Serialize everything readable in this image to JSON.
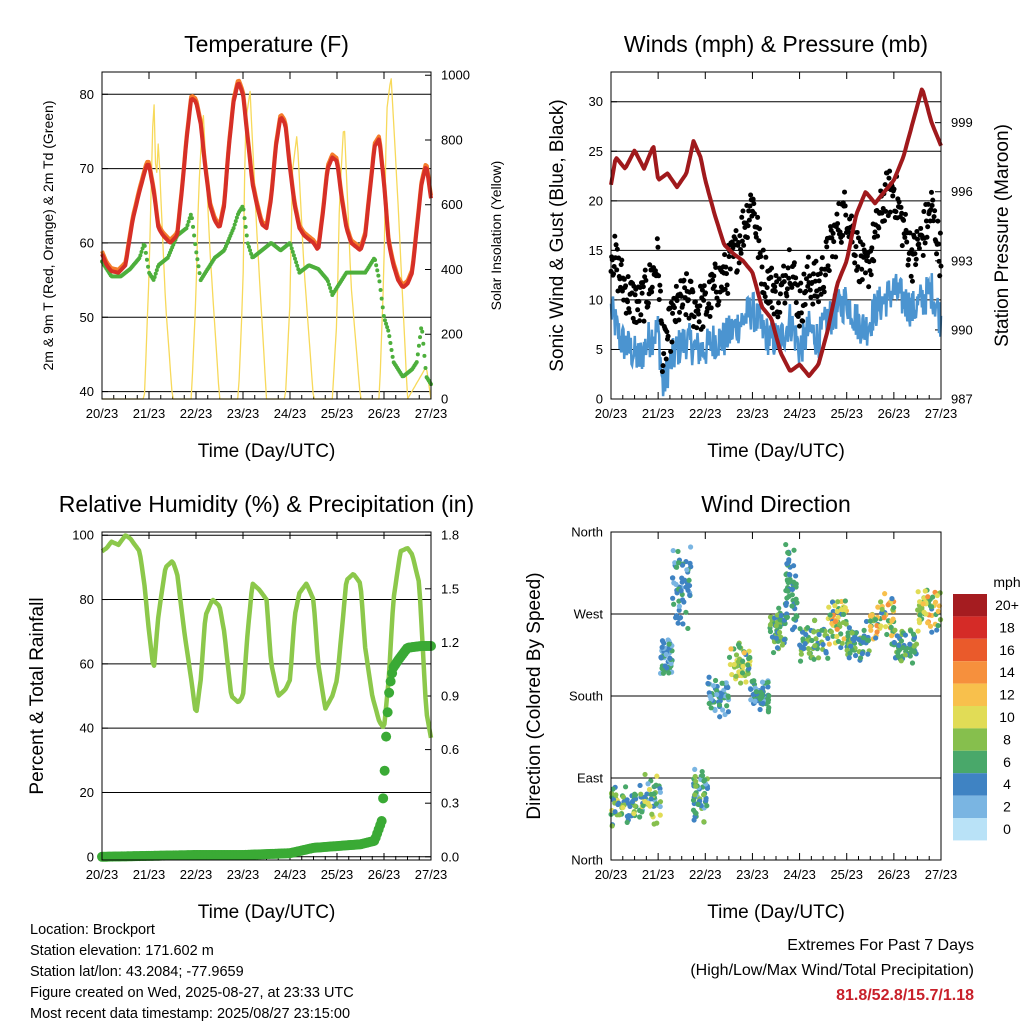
{
  "footer": {
    "location": "Location: Brockport",
    "elevation": "Station elevation: 171.602 m",
    "latlon": "Station lat/lon: 43.2084; -77.9659",
    "created": "Figure created on Wed, 2025-08-27, at 23:33 UTC",
    "recent": "Most recent data timestamp: 2025/08/27 23:15:00",
    "extremes_title": "Extremes For Past 7 Days",
    "extremes_sub": "(High/Low/Max Wind/Total Precipitation)",
    "extremes_values": "81.8/52.8/15.7/1.18"
  },
  "chart_data": [
    {
      "type": "line",
      "title": "Temperature (F)",
      "xlabel": "Time (Day/UTC)",
      "ylabel": "2m & 9m T (Red, Orange) & 2m Td (Green)",
      "ylabel_right": "Solar Insolation (Yellow)",
      "x_ticks": [
        "20/23",
        "21/23",
        "22/23",
        "23/23",
        "24/23",
        "25/23",
        "26/23",
        "27/23"
      ],
      "ylim": [
        39,
        83
      ],
      "y_ticks": [
        40,
        50,
        60,
        70,
        80
      ],
      "ylim_right": [
        0,
        1010
      ],
      "y_ticks_right": [
        0,
        200,
        400,
        600,
        800,
        1000
      ],
      "colors": {
        "temp_2m": "#d62f27",
        "temp_9m": "#f57c2b",
        "dewpoint": "#4daf3c",
        "solar": "#f7d95a"
      },
      "series": [
        {
          "key": "temp_2m",
          "axis": "left",
          "x": [
            0,
            0.1,
            0.2,
            0.35,
            0.5,
            0.65,
            0.8,
            0.95,
            1.0,
            1.1,
            1.2,
            1.3,
            1.45,
            1.6,
            1.7,
            1.8,
            1.9,
            2.0,
            2.1,
            2.2,
            2.3,
            2.4,
            2.5,
            2.6,
            2.7,
            2.8,
            2.9,
            3.0,
            3.1,
            3.2,
            3.3,
            3.4,
            3.5,
            3.6,
            3.7,
            3.8,
            3.9,
            4.0,
            4.1,
            4.2,
            4.3,
            4.4,
            4.5,
            4.6,
            4.7,
            4.8,
            4.9,
            5.0,
            5.1,
            5.2,
            5.3,
            5.4,
            5.5,
            5.6,
            5.7,
            5.8,
            5.9,
            6.0,
            6.1,
            6.2,
            6.3,
            6.4,
            6.5,
            6.6,
            6.7,
            6.8,
            6.9,
            7.0
          ],
          "values": [
            58.5,
            57,
            56.2,
            56,
            57,
            63,
            67,
            70.5,
            70.5,
            67,
            62,
            61,
            60,
            61,
            67,
            74,
            79.5,
            79,
            76,
            70,
            65,
            63,
            62,
            65,
            73,
            79,
            81.7,
            80,
            74,
            68,
            65,
            62.5,
            62,
            66,
            73,
            77,
            76,
            70,
            65,
            62,
            61,
            60.5,
            60,
            59,
            64,
            70,
            71.5,
            71,
            66,
            62,
            60,
            59.5,
            59,
            61,
            67,
            73,
            74,
            68,
            60,
            57,
            55,
            54,
            54.5,
            56,
            62,
            68,
            70.5,
            66
          ]
        },
        {
          "key": "dewpoint",
          "axis": "left",
          "x": [
            0,
            0.2,
            0.4,
            0.6,
            0.8,
            0.9,
            1.0,
            1.1,
            1.2,
            1.4,
            1.6,
            1.8,
            1.9,
            2.0,
            2.1,
            2.2,
            2.4,
            2.6,
            2.8,
            2.9,
            3.0,
            3.1,
            3.2,
            3.4,
            3.6,
            3.8,
            4.0,
            4.2,
            4.4,
            4.6,
            4.8,
            4.9,
            5.0,
            5.2,
            5.4,
            5.6,
            5.8,
            5.9,
            6.0,
            6.1,
            6.2,
            6.4,
            6.6,
            6.7,
            6.8,
            6.9,
            7.0
          ],
          "values": [
            57.5,
            55.5,
            55.5,
            56.5,
            58,
            60,
            56,
            55,
            57,
            58,
            61,
            62,
            64,
            59,
            55,
            56,
            58,
            59,
            62,
            64,
            65,
            60,
            58,
            59,
            60,
            59,
            60,
            56,
            57,
            56.5,
            55,
            53,
            54,
            56,
            56,
            56,
            58,
            55,
            50,
            48,
            44,
            42,
            43,
            44,
            49,
            42,
            41
          ]
        },
        {
          "key": "solar",
          "axis": "right",
          "x": [
            0,
            0.9,
            1.0,
            1.1,
            1.15,
            1.2,
            1.35,
            1.5,
            1.9,
            2.0,
            2.05,
            2.15,
            2.3,
            2.5,
            2.9,
            3.0,
            3.05,
            3.15,
            3.3,
            3.5,
            3.9,
            4.0,
            4.05,
            4.15,
            4.3,
            4.5,
            4.9,
            5.0,
            5.05,
            5.15,
            5.3,
            5.5,
            5.9,
            6.0,
            6.05,
            6.15,
            6.3,
            6.5,
            6.9,
            7.0
          ],
          "values": [
            0,
            0,
            380,
            960,
            650,
            800,
            300,
            0,
            0,
            320,
            620,
            900,
            450,
            0,
            0,
            350,
            850,
            950,
            500,
            0,
            0,
            300,
            700,
            820,
            400,
            0,
            0,
            250,
            600,
            870,
            350,
            0,
            0,
            400,
            880,
            1000,
            600,
            0,
            100,
            0
          ]
        }
      ]
    },
    {
      "type": "line",
      "title": "Winds (mph) & Pressure (mb)",
      "xlabel": "Time (Day/UTC)",
      "ylabel": "Sonic Wind & Gust (Blue, Black)",
      "ylabel_right": "Station Pressure (Maroon)",
      "x_ticks": [
        "20/23",
        "21/23",
        "22/23",
        "23/23",
        "24/23",
        "25/23",
        "26/23",
        "27/23"
      ],
      "ylim": [
        0,
        33
      ],
      "y_ticks": [
        0,
        5,
        10,
        15,
        20,
        25,
        30
      ],
      "ylim_right": [
        987,
        1001.2
      ],
      "y_ticks_right": [
        987,
        990,
        993,
        996,
        999
      ],
      "colors": {
        "wind": "#4b94d0",
        "gust": "#000000",
        "pressure": "#a0191c"
      },
      "series": [
        {
          "key": "wind",
          "axis": "left",
          "x": [
            0,
            0.2,
            0.4,
            0.6,
            0.8,
            1.0,
            1.1,
            1.2,
            1.4,
            1.6,
            1.8,
            2.0,
            2.2,
            2.4,
            2.6,
            2.8,
            3.0,
            3.2,
            3.4,
            3.6,
            3.8,
            4.0,
            4.2,
            4.4,
            4.6,
            4.8,
            5.0,
            5.2,
            5.4,
            5.6,
            5.8,
            6.0,
            6.2,
            6.4,
            6.6,
            6.8,
            7.0
          ],
          "values": [
            9,
            6,
            5,
            4,
            6,
            7,
            1,
            3,
            5,
            6,
            5,
            5,
            6,
            6,
            7,
            8,
            9,
            7,
            6,
            6,
            8,
            5,
            7,
            6,
            8,
            9,
            10,
            8,
            7,
            9,
            10,
            11,
            10,
            9,
            10,
            11,
            8
          ]
        },
        {
          "key": "gust",
          "axis": "left",
          "x": [
            0,
            0.2,
            0.4,
            0.6,
            0.8,
            1.0,
            1.1,
            1.2,
            1.4,
            1.6,
            1.8,
            2.0,
            2.2,
            2.4,
            2.6,
            2.8,
            3.0,
            3.2,
            3.4,
            3.6,
            3.8,
            4.0,
            4.2,
            4.4,
            4.6,
            4.8,
            5.0,
            5.2,
            5.4,
            5.6,
            5.8,
            6.0,
            6.2,
            6.4,
            6.6,
            6.8,
            7.0
          ],
          "values": [
            15,
            12,
            10,
            9,
            11,
            14,
            4,
            6,
            9,
            10,
            9,
            9,
            11,
            12,
            14,
            17,
            20,
            13,
            11,
            10,
            14,
            9,
            12,
            11,
            14,
            17,
            19,
            15,
            12,
            16,
            20,
            21,
            17,
            14,
            16,
            19,
            14
          ]
        },
        {
          "key": "pressure",
          "axis": "right",
          "x": [
            0,
            0.1,
            0.3,
            0.5,
            0.7,
            0.9,
            1.0,
            1.2,
            1.4,
            1.6,
            1.75,
            1.9,
            2.0,
            2.2,
            2.4,
            2.6,
            2.8,
            3.0,
            3.2,
            3.4,
            3.6,
            3.8,
            4.0,
            4.2,
            4.4,
            4.6,
            4.8,
            5.0,
            5.2,
            5.4,
            5.6,
            5.8,
            6.0,
            6.2,
            6.4,
            6.6,
            6.8,
            7.0
          ],
          "values": [
            996.3,
            997.5,
            997,
            997.8,
            997,
            998,
            996.5,
            996.8,
            996.2,
            996.8,
            998.2,
            997.5,
            996.5,
            995,
            993.7,
            993.3,
            993,
            992.5,
            991,
            990.5,
            989,
            988.2,
            988.5,
            988,
            988.5,
            990,
            992,
            993,
            995,
            996,
            995.5,
            996,
            996.5,
            997.5,
            999,
            1000.5,
            999,
            998
          ]
        }
      ]
    },
    {
      "type": "line",
      "title": "Relative Humidity (%) & Precipitation (in)",
      "xlabel": "Time (Day/UTC)",
      "ylabel": "Percent & Total Rainfall",
      "x_ticks": [
        "20/23",
        "21/23",
        "22/23",
        "23/23",
        "24/23",
        "25/23",
        "26/23",
        "27/23"
      ],
      "ylim": [
        -1,
        101
      ],
      "y_ticks": [
        0,
        20,
        40,
        60,
        80,
        100
      ],
      "ylim_right": [
        -0.018,
        1.818
      ],
      "y_ticks_right": [
        "0.0",
        "0.3",
        "0.6",
        "0.9",
        "1.2",
        "1.5",
        "1.8"
      ],
      "colors": {
        "rh": "#8cc84b",
        "precip": "#3aaa35"
      },
      "series": [
        {
          "key": "rh",
          "axis": "left",
          "x": [
            0,
            0.1,
            0.2,
            0.35,
            0.5,
            0.6,
            0.8,
            0.9,
            1.0,
            1.1,
            1.2,
            1.35,
            1.5,
            1.6,
            1.75,
            1.9,
            2.0,
            2.1,
            2.2,
            2.35,
            2.5,
            2.6,
            2.75,
            2.9,
            3.0,
            3.1,
            3.2,
            3.35,
            3.5,
            3.6,
            3.75,
            3.9,
            4.0,
            4.1,
            4.2,
            4.35,
            4.5,
            4.6,
            4.75,
            4.9,
            5.0,
            5.1,
            5.2,
            5.35,
            5.5,
            5.6,
            5.75,
            5.9,
            6.0,
            6.1,
            6.2,
            6.35,
            6.5,
            6.6,
            6.75,
            6.9,
            7.0
          ],
          "values": [
            95,
            96,
            98,
            97,
            100,
            99,
            95,
            85,
            70,
            58,
            75,
            90,
            92,
            88,
            70,
            55,
            44,
            55,
            75,
            80,
            78,
            70,
            50,
            48,
            50,
            70,
            85,
            83,
            80,
            60,
            50,
            52,
            55,
            75,
            82,
            85,
            80,
            60,
            46,
            50,
            55,
            70,
            86,
            88,
            85,
            65,
            50,
            42,
            40,
            55,
            80,
            95,
            96,
            94,
            85,
            45,
            37
          ]
        },
        {
          "key": "precip",
          "axis": "right",
          "x": [
            0,
            1,
            2,
            3,
            4,
            4.5,
            5,
            5.5,
            5.8,
            5.95,
            6.0,
            6.05,
            6.1,
            6.15,
            6.2,
            6.3,
            6.5,
            6.8,
            7.0
          ],
          "values": [
            0,
            0.005,
            0.01,
            0.01,
            0.02,
            0.05,
            0.06,
            0.07,
            0.09,
            0.2,
            0.4,
            0.7,
            0.9,
            1.0,
            1.06,
            1.1,
            1.17,
            1.18,
            1.18
          ]
        }
      ]
    },
    {
      "type": "scatter",
      "title": "Wind Direction",
      "xlabel": "Time (Day/UTC)",
      "ylabel": "Direction (Colored By Speed)",
      "x_ticks": [
        "20/23",
        "21/23",
        "22/23",
        "23/23",
        "24/23",
        "25/23",
        "26/23",
        "27/23"
      ],
      "ylim": [
        0,
        360
      ],
      "y_ticks": [
        {
          "v": 0,
          "label": "North"
        },
        {
          "v": 90,
          "label": "East"
        },
        {
          "v": 180,
          "label": "South"
        },
        {
          "v": 270,
          "label": "West"
        },
        {
          "v": 360,
          "label": "North"
        }
      ],
      "colorbar": {
        "title": "mph",
        "labels": [
          "20+",
          "18",
          "16",
          "14",
          "12",
          "10",
          "8",
          "6",
          "4",
          "2",
          "0"
        ],
        "colors": [
          "#a51c20",
          "#d52b27",
          "#ea5a2b",
          "#f6903d",
          "#f8c04c",
          "#e1dc56",
          "#86bf4d",
          "#49a86a",
          "#3f83c3",
          "#7ab5e2",
          "#b9e2f7"
        ]
      },
      "clusters": [
        {
          "x": [
            0,
            0.55
          ],
          "dir": 60,
          "spread": 25,
          "speed": [
            3,
            10
          ]
        },
        {
          "x": [
            0.6,
            1.05
          ],
          "dir": 65,
          "spread": 30,
          "speed": [
            2,
            11
          ]
        },
        {
          "x": [
            1.05,
            1.3
          ],
          "dir": 225,
          "spread": 25,
          "speed": [
            1,
            7
          ]
        },
        {
          "x": [
            1.3,
            1.7
          ],
          "dir": 300,
          "spread": 55,
          "speed": [
            2,
            6
          ]
        },
        {
          "x": [
            1.75,
            2.05
          ],
          "dir": 70,
          "spread": 35,
          "speed": [
            2,
            8
          ]
        },
        {
          "x": [
            2.05,
            2.5
          ],
          "dir": 180,
          "spread": 25,
          "speed": [
            2,
            7
          ]
        },
        {
          "x": [
            2.5,
            2.95
          ],
          "dir": 215,
          "spread": 25,
          "speed": [
            3,
            12
          ]
        },
        {
          "x": [
            2.95,
            3.35
          ],
          "dir": 180,
          "spread": 20,
          "speed": [
            2,
            7
          ]
        },
        {
          "x": [
            3.35,
            3.7
          ],
          "dir": 255,
          "spread": 30,
          "speed": [
            3,
            9
          ]
        },
        {
          "x": [
            3.7,
            3.95
          ],
          "dir": 300,
          "spread": 60,
          "speed": [
            3,
            7
          ]
        },
        {
          "x": [
            3.95,
            4.6
          ],
          "dir": 240,
          "spread": 25,
          "speed": [
            3,
            9
          ]
        },
        {
          "x": [
            4.6,
            5.0
          ],
          "dir": 260,
          "spread": 30,
          "speed": [
            4,
            14
          ]
        },
        {
          "x": [
            5.0,
            5.5
          ],
          "dir": 240,
          "spread": 25,
          "speed": [
            3,
            8
          ]
        },
        {
          "x": [
            5.5,
            6.0
          ],
          "dir": 265,
          "spread": 30,
          "speed": [
            4,
            15
          ]
        },
        {
          "x": [
            6.0,
            6.5
          ],
          "dir": 235,
          "spread": 20,
          "speed": [
            3,
            9
          ]
        },
        {
          "x": [
            6.5,
            7.0
          ],
          "dir": 275,
          "spread": 30,
          "speed": [
            4,
            14
          ]
        }
      ]
    }
  ]
}
